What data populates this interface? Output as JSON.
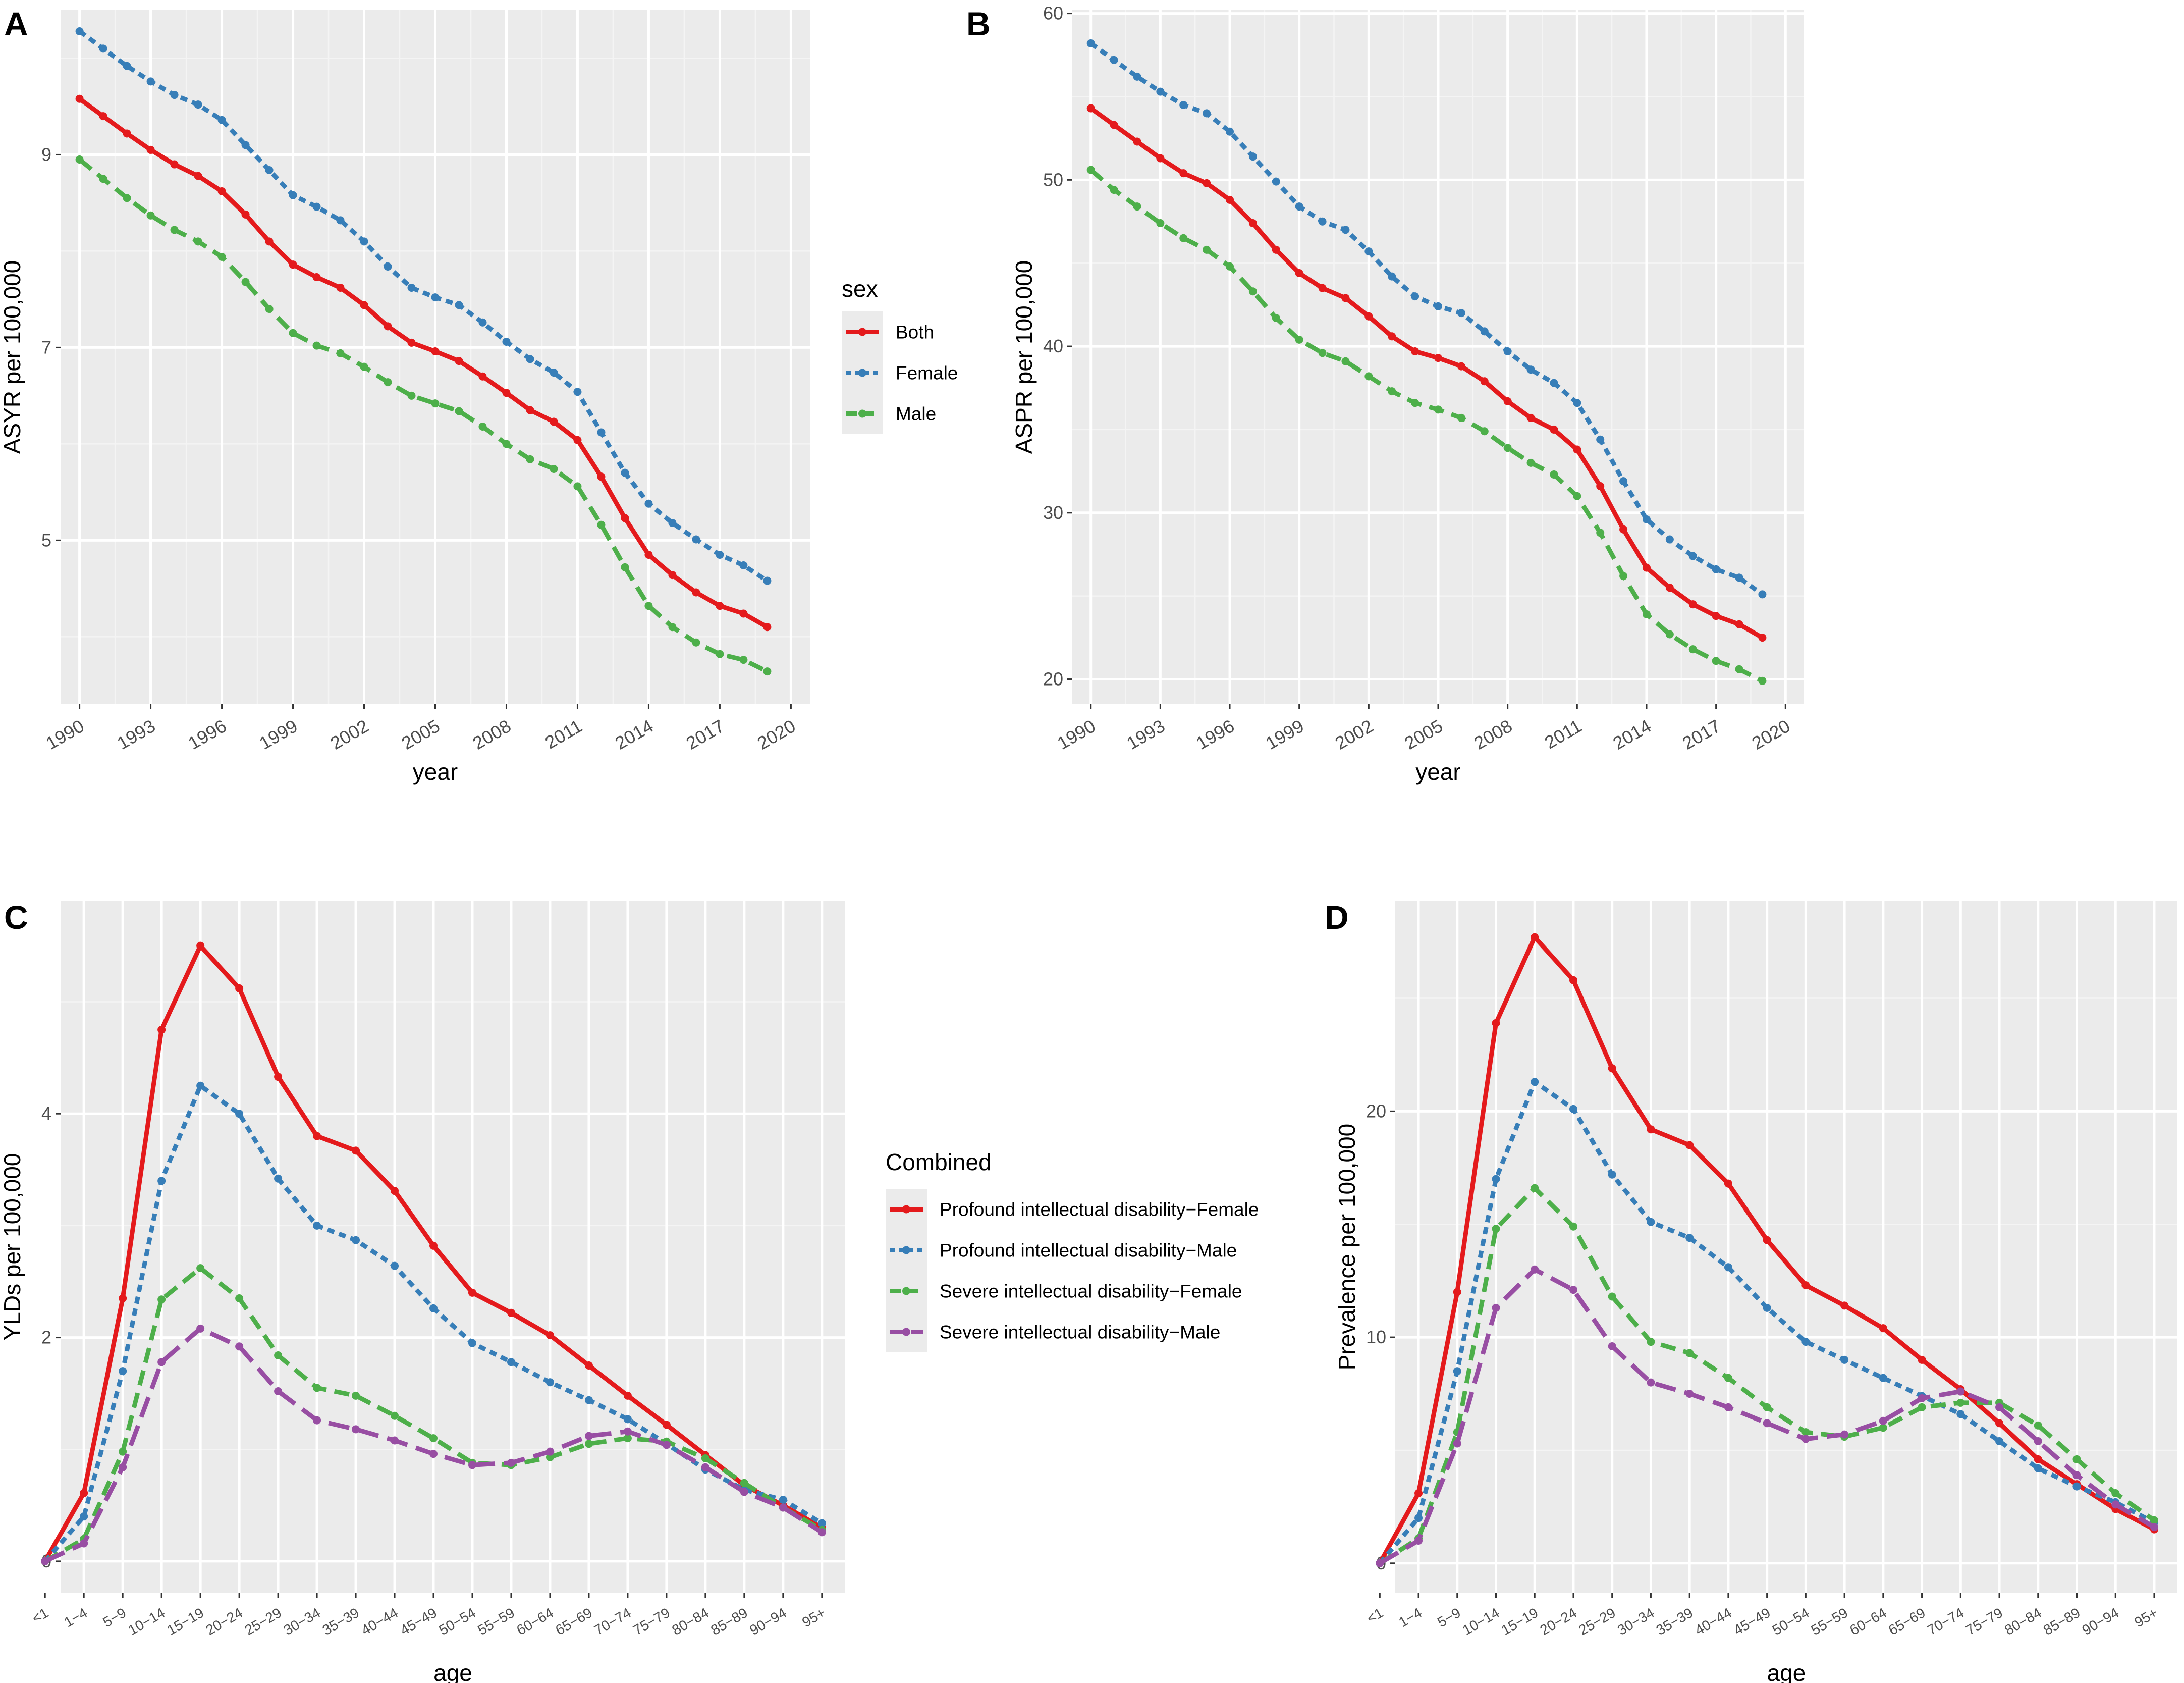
{
  "colors": {
    "panel_bg": "#ebebeb",
    "grid_major": "#ffffff",
    "grid_minor": "#f4f4f4",
    "tick_text": "#4d4d4d",
    "red": "#e41a1c",
    "blue": "#377eb8",
    "green": "#4daf4a",
    "purple": "#984ea3"
  },
  "legend_top": {
    "title": "sex",
    "items": [
      {
        "label": "Both",
        "color": "#e41a1c",
        "dash": "solid"
      },
      {
        "label": "Female",
        "color": "#377eb8",
        "dash": "dotted"
      },
      {
        "label": "Male",
        "color": "#4daf4a",
        "dash": "dashed"
      }
    ]
  },
  "legend_bottom": {
    "title": "Combined",
    "items": [
      {
        "label": "Profound intellectual disability−Female",
        "color": "#e41a1c",
        "dash": "solid"
      },
      {
        "label": "Profound intellectual disability−Male",
        "color": "#377eb8",
        "dash": "dotted"
      },
      {
        "label": "Severe intellectual disability−Female",
        "color": "#4daf4a",
        "dash": "dashed"
      },
      {
        "label": "Severe intellectual disability−Male",
        "color": "#984ea3",
        "dash": "longdash"
      }
    ]
  },
  "chart_data": [
    {
      "panel": "A",
      "type": "line",
      "title": "",
      "xlabel": "year",
      "ylabel": "ASYR per 100,000",
      "xlim": [
        1989.2,
        2020.8
      ],
      "ylim": [
        3.3,
        10.5
      ],
      "xticks": [
        1990,
        1993,
        1996,
        1999,
        2002,
        2005,
        2008,
        2011,
        2014,
        2017,
        2020
      ],
      "yticks": [
        5,
        7,
        9
      ],
      "x": [
        1990,
        1991,
        1992,
        1993,
        1994,
        1995,
        1996,
        1997,
        1998,
        1999,
        2000,
        2001,
        2002,
        2003,
        2004,
        2005,
        2006,
        2007,
        2008,
        2009,
        2010,
        2011,
        2012,
        2013,
        2014,
        2015,
        2016,
        2017,
        2018,
        2019
      ],
      "series": [
        {
          "name": "Both",
          "color": "#e41a1c",
          "dash": "solid",
          "values": [
            9.58,
            9.4,
            9.22,
            9.05,
            8.9,
            8.78,
            8.62,
            8.38,
            8.1,
            7.86,
            7.73,
            7.62,
            7.44,
            7.22,
            7.05,
            6.96,
            6.86,
            6.7,
            6.53,
            6.35,
            6.23,
            6.04,
            5.66,
            5.23,
            4.85,
            4.64,
            4.46,
            4.32,
            4.24,
            4.1
          ]
        },
        {
          "name": "Female",
          "color": "#377eb8",
          "dash": "dotted",
          "values": [
            10.28,
            10.1,
            9.92,
            9.76,
            9.62,
            9.52,
            9.36,
            9.1,
            8.84,
            8.58,
            8.46,
            8.32,
            8.1,
            7.84,
            7.62,
            7.52,
            7.44,
            7.26,
            7.06,
            6.88,
            6.74,
            6.54,
            6.12,
            5.7,
            5.38,
            5.18,
            5.01,
            4.85,
            4.74,
            4.58
          ]
        },
        {
          "name": "Male",
          "color": "#4daf4a",
          "dash": "dashed",
          "values": [
            8.95,
            8.75,
            8.55,
            8.37,
            8.22,
            8.1,
            7.94,
            7.68,
            7.4,
            7.15,
            7.02,
            6.94,
            6.8,
            6.64,
            6.5,
            6.42,
            6.34,
            6.18,
            6.0,
            5.84,
            5.74,
            5.56,
            5.16,
            4.72,
            4.32,
            4.1,
            3.94,
            3.82,
            3.76,
            3.64
          ]
        }
      ]
    },
    {
      "panel": "B",
      "type": "line",
      "title": "",
      "xlabel": "year",
      "ylabel": "ASPR per 100,000",
      "xlim": [
        1989.2,
        2020.8
      ],
      "ylim": [
        18.5,
        60.2
      ],
      "xticks": [
        1990,
        1993,
        1996,
        1999,
        2002,
        2005,
        2008,
        2011,
        2014,
        2017,
        2020
      ],
      "yticks": [
        20,
        30,
        40,
        50,
        60
      ],
      "x": [
        1990,
        1991,
        1992,
        1993,
        1994,
        1995,
        1996,
        1997,
        1998,
        1999,
        2000,
        2001,
        2002,
        2003,
        2004,
        2005,
        2006,
        2007,
        2008,
        2009,
        2010,
        2011,
        2012,
        2013,
        2014,
        2015,
        2016,
        2017,
        2018,
        2019
      ],
      "series": [
        {
          "name": "Both",
          "color": "#e41a1c",
          "dash": "solid",
          "values": [
            54.3,
            53.3,
            52.3,
            51.3,
            50.4,
            49.8,
            48.8,
            47.4,
            45.8,
            44.4,
            43.5,
            42.9,
            41.8,
            40.6,
            39.7,
            39.3,
            38.8,
            37.9,
            36.7,
            35.7,
            35.0,
            33.8,
            31.6,
            29.0,
            26.7,
            25.5,
            24.5,
            23.8,
            23.3,
            22.5
          ]
        },
        {
          "name": "Female",
          "color": "#377eb8",
          "dash": "dotted",
          "values": [
            58.2,
            57.2,
            56.2,
            55.3,
            54.5,
            54.0,
            52.9,
            51.4,
            49.9,
            48.4,
            47.5,
            47.0,
            45.7,
            44.2,
            43.0,
            42.4,
            42.0,
            40.9,
            39.7,
            38.6,
            37.8,
            36.6,
            34.4,
            31.9,
            29.6,
            28.4,
            27.4,
            26.6,
            26.1,
            25.1
          ]
        },
        {
          "name": "Male",
          "color": "#4daf4a",
          "dash": "dashed",
          "values": [
            50.6,
            49.4,
            48.4,
            47.4,
            46.5,
            45.8,
            44.8,
            43.3,
            41.7,
            40.4,
            39.6,
            39.1,
            38.2,
            37.3,
            36.6,
            36.2,
            35.7,
            34.9,
            33.9,
            33.0,
            32.3,
            31.0,
            28.8,
            26.2,
            23.9,
            22.7,
            21.8,
            21.1,
            20.6,
            19.9
          ]
        }
      ]
    },
    {
      "panel": "C",
      "type": "line",
      "title": "",
      "xlabel": "age",
      "ylabel": "YLDs per 100,000",
      "ylim": [
        -0.28,
        5.9
      ],
      "yticks": [
        0,
        2,
        4
      ],
      "categories": [
        "<1",
        "1−4",
        "5−9",
        "10−14",
        "15−19",
        "20−24",
        "25−29",
        "30−34",
        "35−39",
        "40−44",
        "45−49",
        "50−54",
        "55−59",
        "60−64",
        "65−69",
        "70−74",
        "75−79",
        "80−84",
        "85−89",
        "90−94",
        "95+"
      ],
      "series": [
        {
          "name": "Profound intellectual disability−Female",
          "color": "#e41a1c",
          "dash": "solid",
          "values": [
            0.0,
            0.61,
            2.35,
            4.75,
            5.5,
            5.12,
            4.33,
            3.8,
            3.67,
            3.31,
            2.82,
            2.4,
            2.22,
            2.02,
            1.75,
            1.48,
            1.22,
            0.95,
            0.68,
            0.5,
            0.3
          ]
        },
        {
          "name": "Profound intellectual disability−Male",
          "color": "#377eb8",
          "dash": "dotted",
          "values": [
            0.0,
            0.4,
            1.7,
            3.4,
            4.25,
            4.0,
            3.42,
            3.0,
            2.87,
            2.64,
            2.26,
            1.95,
            1.78,
            1.6,
            1.44,
            1.27,
            1.05,
            0.82,
            0.64,
            0.55,
            0.34
          ]
        },
        {
          "name": "Severe intellectual disability−Female",
          "color": "#4daf4a",
          "dash": "dashed",
          "values": [
            0.0,
            0.2,
            0.98,
            2.34,
            2.62,
            2.35,
            1.84,
            1.55,
            1.48,
            1.3,
            1.1,
            0.88,
            0.86,
            0.93,
            1.05,
            1.1,
            1.07,
            0.92,
            0.7,
            0.48,
            0.28
          ]
        },
        {
          "name": "Severe intellectual disability−Male",
          "color": "#984ea3",
          "dash": "longdash",
          "values": [
            0.0,
            0.16,
            0.84,
            1.78,
            2.08,
            1.92,
            1.52,
            1.26,
            1.18,
            1.08,
            0.96,
            0.86,
            0.88,
            0.98,
            1.12,
            1.16,
            1.04,
            0.84,
            0.62,
            0.48,
            0.26
          ]
        }
      ]
    },
    {
      "panel": "D",
      "type": "line",
      "title": "",
      "xlabel": "age",
      "ylabel": "Prevalence per 100,000",
      "ylim": [
        -1.3,
        29.3
      ],
      "yticks": [
        0,
        10,
        20
      ],
      "categories": [
        "<1",
        "1−4",
        "5−9",
        "10−14",
        "15−19",
        "20−24",
        "25−29",
        "30−34",
        "35−39",
        "40−44",
        "45−49",
        "50−54",
        "55−59",
        "60−64",
        "65−69",
        "70−74",
        "75−79",
        "80−84",
        "85−89",
        "90−94",
        "95+"
      ],
      "series": [
        {
          "name": "Profound intellectual disability−Female",
          "color": "#e41a1c",
          "dash": "solid",
          "values": [
            0.0,
            3.1,
            12.0,
            23.9,
            27.7,
            25.8,
            21.9,
            19.2,
            18.5,
            16.8,
            14.3,
            12.3,
            11.4,
            10.4,
            9.0,
            7.7,
            6.2,
            4.6,
            3.5,
            2.4,
            1.5
          ]
        },
        {
          "name": "Profound intellectual disability−Male",
          "color": "#377eb8",
          "dash": "dotted",
          "values": [
            0.0,
            2.0,
            8.5,
            17.0,
            21.3,
            20.1,
            17.2,
            15.1,
            14.4,
            13.1,
            11.3,
            9.8,
            9.0,
            8.2,
            7.4,
            6.6,
            5.4,
            4.2,
            3.4,
            2.7,
            1.8
          ]
        },
        {
          "name": "Severe intellectual disability−Female",
          "color": "#4daf4a",
          "dash": "dashed",
          "values": [
            0.0,
            1.1,
            5.8,
            14.8,
            16.6,
            14.9,
            11.8,
            9.8,
            9.3,
            8.2,
            6.9,
            5.8,
            5.6,
            6.0,
            6.9,
            7.1,
            7.1,
            6.1,
            4.6,
            3.1,
            1.9
          ]
        },
        {
          "name": "Severe intellectual disability−Male",
          "color": "#984ea3",
          "dash": "longdash",
          "values": [
            0.0,
            1.0,
            5.3,
            11.3,
            13.0,
            12.1,
            9.6,
            8.0,
            7.5,
            6.9,
            6.2,
            5.5,
            5.7,
            6.3,
            7.3,
            7.6,
            6.9,
            5.4,
            3.9,
            2.6,
            1.6
          ]
        }
      ]
    }
  ]
}
